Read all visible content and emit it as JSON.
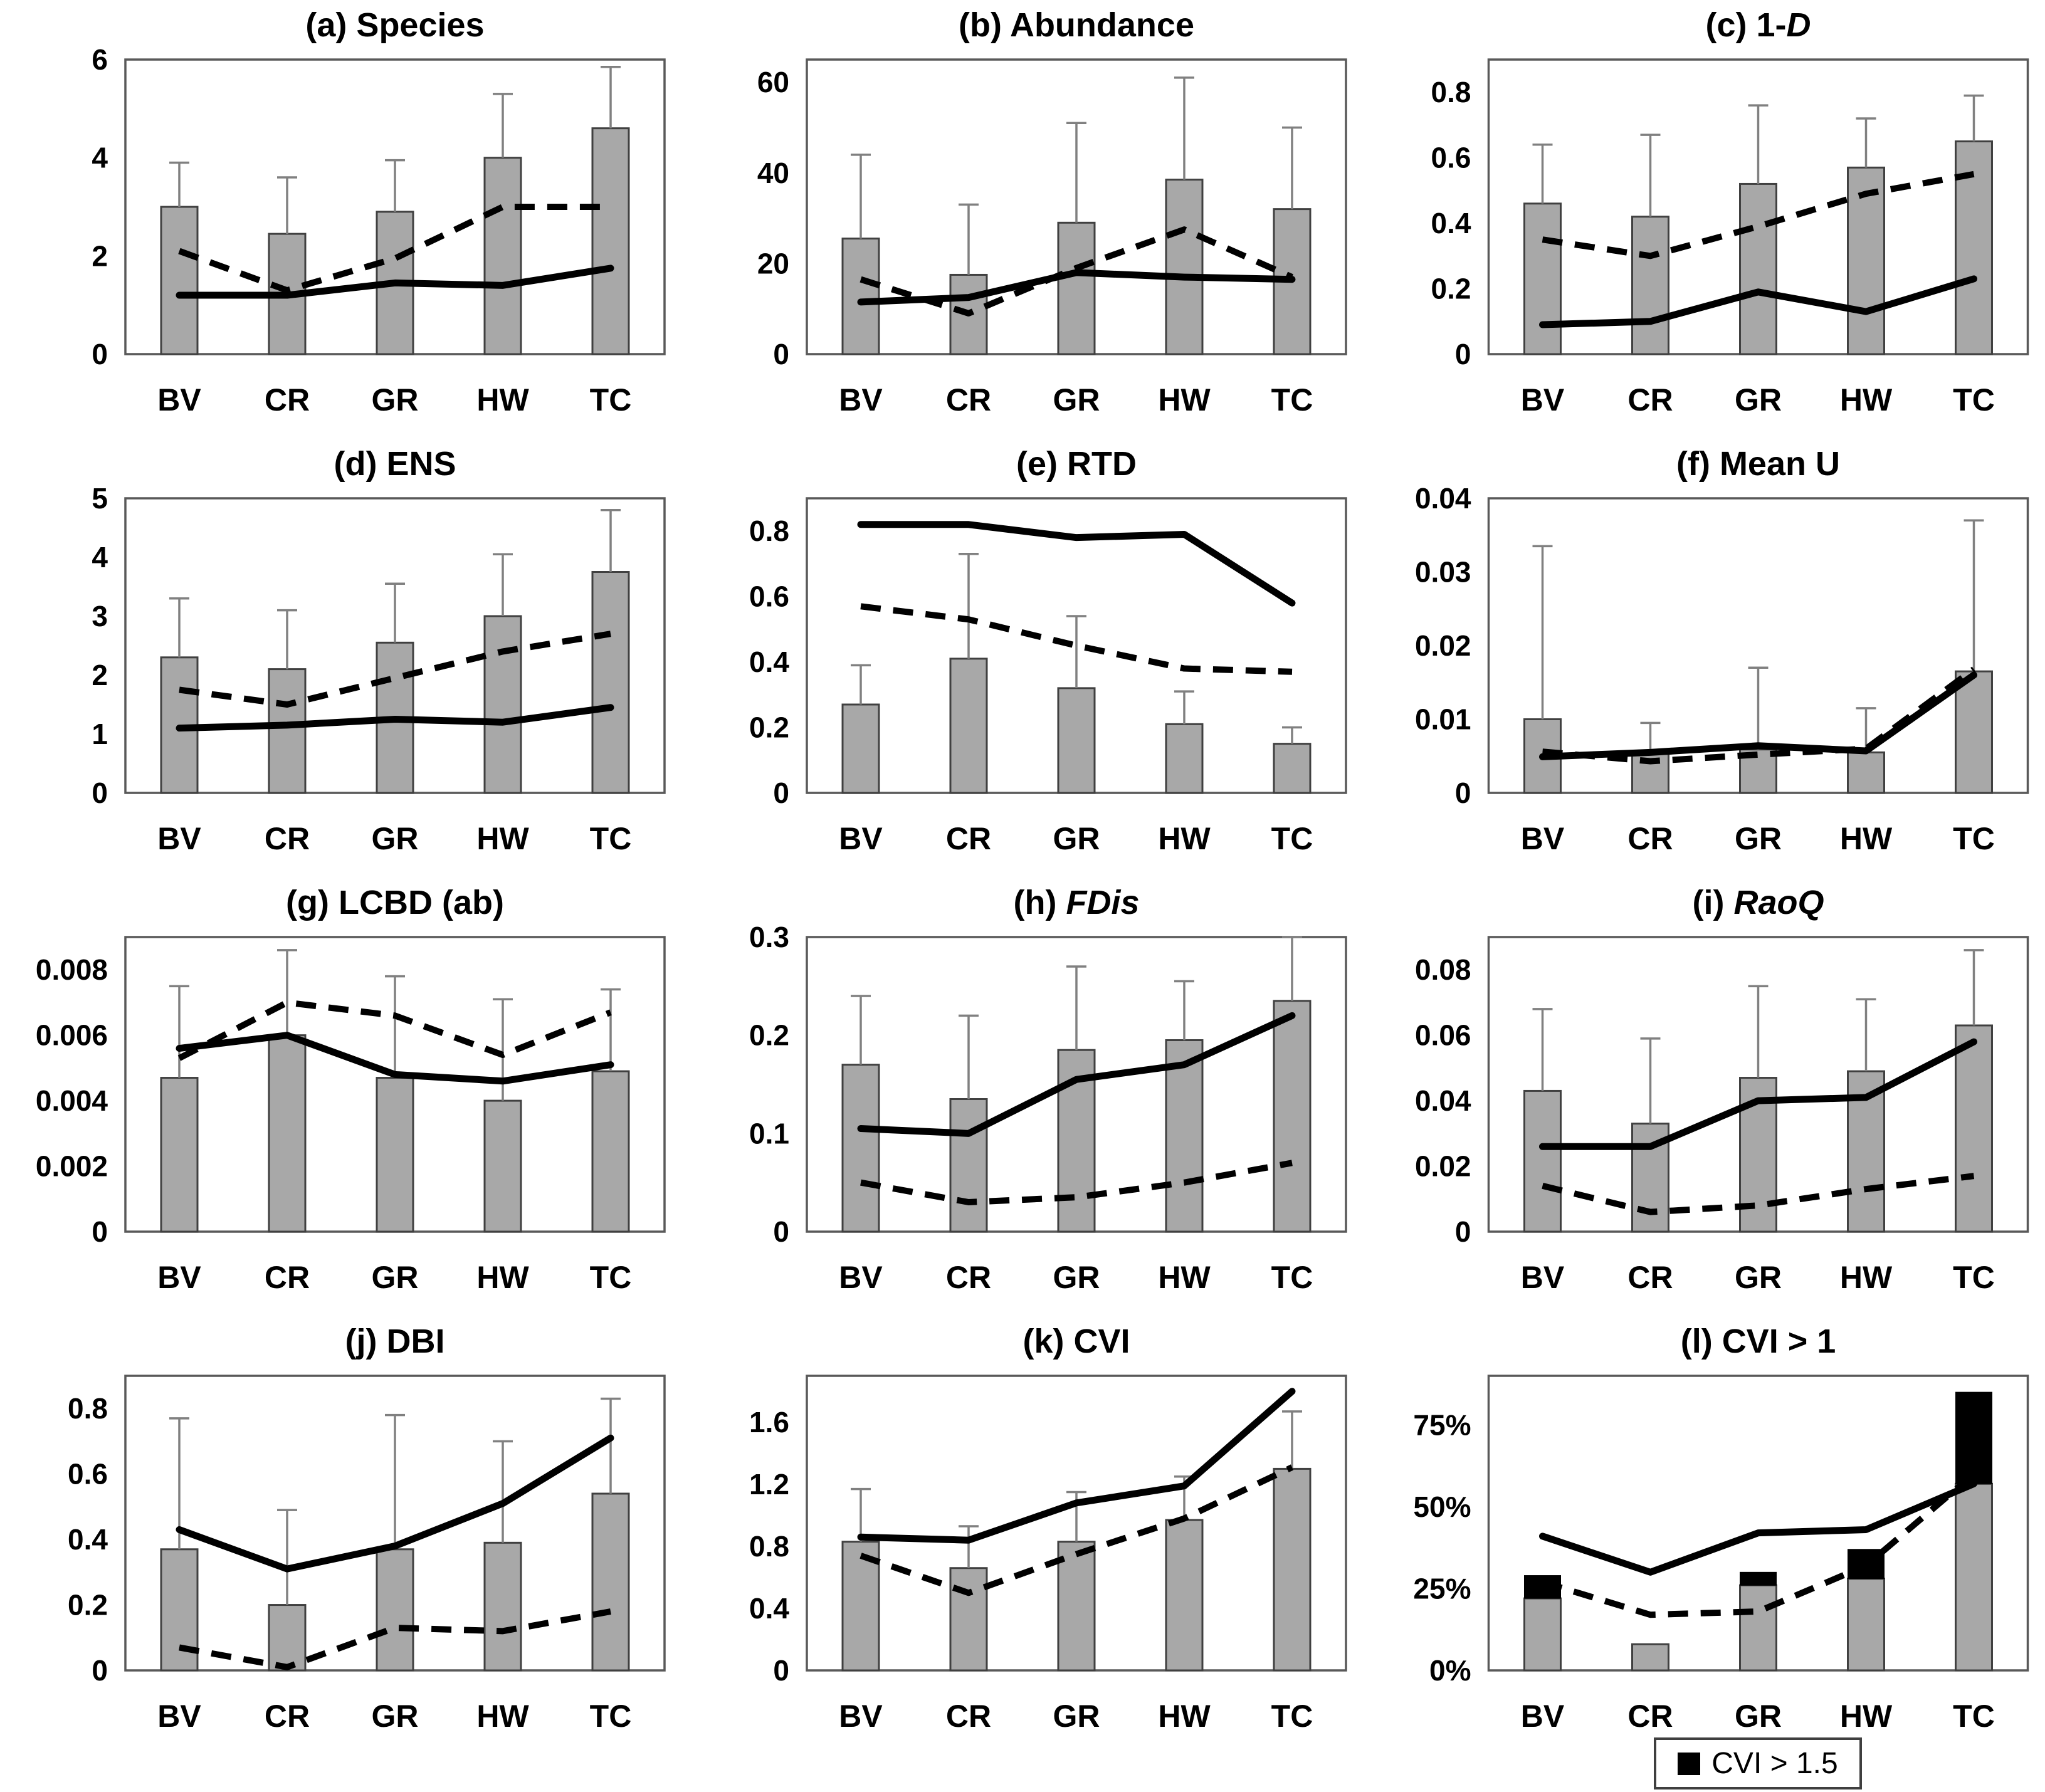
{
  "figure": {
    "background": "#ffffff",
    "categories": [
      "BV",
      "CR",
      "GR",
      "HW",
      "TC"
    ],
    "colors": {
      "bar_fill": "#a8a8a8",
      "bar_stroke": "#404040",
      "error_bar": "#808080",
      "line": "#000000",
      "plot_border": "#595959",
      "black_segment": "#000000"
    },
    "legend": {
      "label": "CVI > 1.5",
      "swatch": "black-square"
    }
  },
  "chart_data": [
    {
      "id": "a",
      "type": "bar-line",
      "title_prefix": "(a) Species",
      "title_italic": "",
      "categories": [
        "BV",
        "CR",
        "GR",
        "HW",
        "TC"
      ],
      "ylim": [
        0,
        6
      ],
      "grid": false,
      "legend_position": "none",
      "yticks": [
        {
          "v": 0,
          "t": "0"
        },
        {
          "v": 2,
          "t": "2"
        },
        {
          "v": 4,
          "t": "4"
        },
        {
          "v": 6,
          "t": "6"
        }
      ],
      "series": [
        {
          "name": "bars",
          "values": [
            3.0,
            2.45,
            2.9,
            4.0,
            4.6
          ]
        },
        {
          "name": "error_top",
          "values": [
            3.9,
            3.6,
            3.95,
            5.3,
            5.85
          ]
        },
        {
          "name": "solid_line",
          "values": [
            1.2,
            1.2,
            1.45,
            1.4,
            1.75
          ]
        },
        {
          "name": "dashed_line",
          "values": [
            2.1,
            1.3,
            1.95,
            3.0,
            3.0
          ]
        }
      ]
    },
    {
      "id": "b",
      "type": "bar-line",
      "title_prefix": "(b) Abundance",
      "title_italic": "",
      "categories": [
        "BV",
        "CR",
        "GR",
        "HW",
        "TC"
      ],
      "ylim": [
        0,
        65
      ],
      "grid": false,
      "legend_position": "none",
      "yticks": [
        {
          "v": 0,
          "t": "0"
        },
        {
          "v": 20,
          "t": "20"
        },
        {
          "v": 40,
          "t": "40"
        },
        {
          "v": 60,
          "t": "60"
        }
      ],
      "series": [
        {
          "name": "bars",
          "values": [
            25.5,
            17.5,
            29,
            38.5,
            32
          ]
        },
        {
          "name": "error_top",
          "values": [
            44,
            33,
            51,
            61,
            50
          ]
        },
        {
          "name": "solid_line",
          "values": [
            11.5,
            12.5,
            18,
            17,
            16.5
          ]
        },
        {
          "name": "dashed_line",
          "values": [
            16.5,
            9,
            19,
            27.5,
            17
          ]
        }
      ]
    },
    {
      "id": "c",
      "type": "bar-line",
      "title_prefix": "(c) 1-",
      "title_italic": "D",
      "categories": [
        "BV",
        "CR",
        "GR",
        "HW",
        "TC"
      ],
      "ylim": [
        0,
        0.9
      ],
      "grid": false,
      "legend_position": "none",
      "yticks": [
        {
          "v": 0,
          "t": "0"
        },
        {
          "v": 0.2,
          "t": "0.2"
        },
        {
          "v": 0.4,
          "t": "0.4"
        },
        {
          "v": 0.6,
          "t": "0.6"
        },
        {
          "v": 0.8,
          "t": "0.8"
        }
      ],
      "series": [
        {
          "name": "bars",
          "values": [
            0.46,
            0.42,
            0.52,
            0.57,
            0.65
          ]
        },
        {
          "name": "error_top",
          "values": [
            0.64,
            0.67,
            0.76,
            0.72,
            0.79
          ]
        },
        {
          "name": "solid_line",
          "values": [
            0.09,
            0.1,
            0.19,
            0.13,
            0.23
          ]
        },
        {
          "name": "dashed_line",
          "values": [
            0.35,
            0.3,
            0.39,
            0.49,
            0.55
          ]
        }
      ]
    },
    {
      "id": "d",
      "type": "bar-line",
      "title_prefix": "(d) ENS",
      "title_italic": "",
      "categories": [
        "BV",
        "CR",
        "GR",
        "HW",
        "TC"
      ],
      "ylim": [
        0,
        5
      ],
      "grid": false,
      "legend_position": "none",
      "yticks": [
        {
          "v": 0,
          "t": "0"
        },
        {
          "v": 1,
          "t": "1"
        },
        {
          "v": 2,
          "t": "2"
        },
        {
          "v": 3,
          "t": "3"
        },
        {
          "v": 4,
          "t": "4"
        },
        {
          "v": 5,
          "t": "5"
        }
      ],
      "series": [
        {
          "name": "bars",
          "values": [
            2.3,
            2.1,
            2.55,
            3.0,
            3.75
          ]
        },
        {
          "name": "error_top",
          "values": [
            3.3,
            3.1,
            3.55,
            4.05,
            4.8
          ]
        },
        {
          "name": "solid_line",
          "values": [
            1.1,
            1.15,
            1.25,
            1.2,
            1.45
          ]
        },
        {
          "name": "dashed_line",
          "values": [
            1.75,
            1.5,
            1.95,
            2.4,
            2.7
          ]
        }
      ]
    },
    {
      "id": "e",
      "type": "bar-line",
      "title_prefix": "(e) RTD",
      "title_italic": "",
      "categories": [
        "BV",
        "CR",
        "GR",
        "HW",
        "TC"
      ],
      "ylim": [
        0,
        0.9
      ],
      "grid": false,
      "legend_position": "none",
      "yticks": [
        {
          "v": 0,
          "t": "0"
        },
        {
          "v": 0.2,
          "t": "0.2"
        },
        {
          "v": 0.4,
          "t": "0.4"
        },
        {
          "v": 0.6,
          "t": "0.6"
        },
        {
          "v": 0.8,
          "t": "0.8"
        }
      ],
      "series": [
        {
          "name": "bars",
          "values": [
            0.27,
            0.41,
            0.32,
            0.21,
            0.15
          ]
        },
        {
          "name": "error_top",
          "values": [
            0.39,
            0.73,
            0.54,
            0.31,
            0.2
          ]
        },
        {
          "name": "solid_line",
          "values": [
            0.82,
            0.82,
            0.78,
            0.79,
            0.58
          ]
        },
        {
          "name": "dashed_line",
          "values": [
            0.57,
            0.53,
            0.45,
            0.38,
            0.37
          ]
        }
      ]
    },
    {
      "id": "f",
      "type": "bar-line",
      "title_prefix": "(f) Mean U",
      "title_italic": "",
      "categories": [
        "BV",
        "CR",
        "GR",
        "HW",
        "TC"
      ],
      "ylim": [
        0,
        0.04
      ],
      "grid": false,
      "legend_position": "none",
      "yticks": [
        {
          "v": 0,
          "t": "0"
        },
        {
          "v": 0.01,
          "t": "0.01"
        },
        {
          "v": 0.02,
          "t": "0.02"
        },
        {
          "v": 0.03,
          "t": "0.03"
        },
        {
          "v": 0.04,
          "t": "0.04"
        }
      ],
      "series": [
        {
          "name": "bars",
          "values": [
            0.01,
            0.0053,
            0.0059,
            0.0055,
            0.0165
          ]
        },
        {
          "name": "error_top",
          "values": [
            0.0335,
            0.0095,
            0.017,
            0.0115,
            0.037
          ]
        },
        {
          "name": "solid_line",
          "values": [
            0.0049,
            0.0055,
            0.0064,
            0.0057,
            0.016
          ]
        },
        {
          "name": "dashed_line",
          "values": [
            0.0056,
            0.0043,
            0.0052,
            0.006,
            0.0168
          ]
        }
      ]
    },
    {
      "id": "g",
      "type": "bar-line",
      "title_prefix": "(g) LCBD (ab)",
      "title_italic": "",
      "categories": [
        "BV",
        "CR",
        "GR",
        "HW",
        "TC"
      ],
      "ylim": [
        0,
        0.009
      ],
      "grid": false,
      "legend_position": "none",
      "yticks": [
        {
          "v": 0,
          "t": "0"
        },
        {
          "v": 0.002,
          "t": "0.002"
        },
        {
          "v": 0.004,
          "t": "0.004"
        },
        {
          "v": 0.006,
          "t": "0.006"
        },
        {
          "v": 0.008,
          "t": "0.008"
        }
      ],
      "series": [
        {
          "name": "bars",
          "values": [
            0.0047,
            0.006,
            0.0047,
            0.004,
            0.0049
          ]
        },
        {
          "name": "error_top",
          "values": [
            0.0075,
            0.0086,
            0.0078,
            0.0071,
            0.0074
          ]
        },
        {
          "name": "solid_line",
          "values": [
            0.0056,
            0.006,
            0.0048,
            0.0046,
            0.0051
          ]
        },
        {
          "name": "dashed_line",
          "values": [
            0.0053,
            0.007,
            0.0066,
            0.0054,
            0.0067
          ]
        }
      ]
    },
    {
      "id": "h",
      "type": "bar-line",
      "title_prefix": "(h) ",
      "title_italic": "FDis",
      "categories": [
        "BV",
        "CR",
        "GR",
        "HW",
        "TC"
      ],
      "ylim": [
        0,
        0.3
      ],
      "grid": false,
      "legend_position": "none",
      "yticks": [
        {
          "v": 0,
          "t": "0"
        },
        {
          "v": 0.1,
          "t": "0.1"
        },
        {
          "v": 0.2,
          "t": "0.2"
        },
        {
          "v": 0.3,
          "t": "0.3"
        }
      ],
      "series": [
        {
          "name": "bars",
          "values": [
            0.17,
            0.135,
            0.185,
            0.195,
            0.235
          ]
        },
        {
          "name": "error_top",
          "values": [
            0.24,
            0.22,
            0.27,
            0.255,
            0.3
          ]
        },
        {
          "name": "solid_line",
          "values": [
            0.105,
            0.1,
            0.155,
            0.17,
            0.22
          ]
        },
        {
          "name": "dashed_line",
          "values": [
            0.05,
            0.03,
            0.035,
            0.05,
            0.07
          ]
        }
      ]
    },
    {
      "id": "i",
      "type": "bar-line",
      "title_prefix": "(i) ",
      "title_italic": "RaoQ",
      "categories": [
        "BV",
        "CR",
        "GR",
        "HW",
        "TC"
      ],
      "ylim": [
        0,
        0.09
      ],
      "grid": false,
      "legend_position": "none",
      "yticks": [
        {
          "v": 0,
          "t": "0"
        },
        {
          "v": 0.02,
          "t": "0.02"
        },
        {
          "v": 0.04,
          "t": "0.04"
        },
        {
          "v": 0.06,
          "t": "0.06"
        },
        {
          "v": 0.08,
          "t": "0.08"
        }
      ],
      "series": [
        {
          "name": "bars",
          "values": [
            0.043,
            0.033,
            0.047,
            0.049,
            0.063
          ]
        },
        {
          "name": "error_top",
          "values": [
            0.068,
            0.059,
            0.075,
            0.071,
            0.086
          ]
        },
        {
          "name": "solid_line",
          "values": [
            0.026,
            0.026,
            0.04,
            0.041,
            0.058
          ]
        },
        {
          "name": "dashed_line",
          "values": [
            0.014,
            0.006,
            0.008,
            0.013,
            0.017
          ]
        }
      ]
    },
    {
      "id": "j",
      "type": "bar-line",
      "title_prefix": "(j) DBI",
      "title_italic": "",
      "categories": [
        "BV",
        "CR",
        "GR",
        "HW",
        "TC"
      ],
      "ylim": [
        0,
        0.9
      ],
      "grid": false,
      "legend_position": "none",
      "yticks": [
        {
          "v": 0,
          "t": "0"
        },
        {
          "v": 0.2,
          "t": "0.2"
        },
        {
          "v": 0.4,
          "t": "0.4"
        },
        {
          "v": 0.6,
          "t": "0.6"
        },
        {
          "v": 0.8,
          "t": "0.8"
        }
      ],
      "series": [
        {
          "name": "bars",
          "values": [
            0.37,
            0.2,
            0.37,
            0.39,
            0.54
          ]
        },
        {
          "name": "error_top",
          "values": [
            0.77,
            0.49,
            0.78,
            0.7,
            0.83
          ]
        },
        {
          "name": "solid_line",
          "values": [
            0.43,
            0.31,
            0.38,
            0.51,
            0.71
          ]
        },
        {
          "name": "dashed_line",
          "values": [
            0.07,
            0.01,
            0.13,
            0.12,
            0.18
          ]
        }
      ]
    },
    {
      "id": "k",
      "type": "bar-line",
      "title_prefix": "(k) CVI",
      "title_italic": "",
      "categories": [
        "BV",
        "CR",
        "GR",
        "HW",
        "TC"
      ],
      "ylim": [
        0,
        1.9
      ],
      "grid": false,
      "legend_position": "none",
      "yticks": [
        {
          "v": 0,
          "t": "0"
        },
        {
          "v": 0.4,
          "t": "0.4"
        },
        {
          "v": 0.8,
          "t": "0.8"
        },
        {
          "v": 1.2,
          "t": "1.2"
        },
        {
          "v": 1.6,
          "t": "1.6"
        }
      ],
      "series": [
        {
          "name": "bars",
          "values": [
            0.83,
            0.66,
            0.83,
            0.97,
            1.3
          ]
        },
        {
          "name": "error_top",
          "values": [
            1.17,
            0.93,
            1.15,
            1.25,
            1.67
          ]
        },
        {
          "name": "solid_line",
          "values": [
            0.86,
            0.84,
            1.08,
            1.19,
            1.8
          ]
        },
        {
          "name": "dashed_line",
          "values": [
            0.74,
            0.5,
            0.75,
            0.98,
            1.31
          ]
        }
      ]
    },
    {
      "id": "l",
      "type": "stacked-bar-line",
      "title_prefix": "(l) CVI > 1",
      "title_italic": "",
      "categories": [
        "BV",
        "CR",
        "GR",
        "HW",
        "TC"
      ],
      "ylim": [
        0,
        90
      ],
      "unit": "%",
      "grid": false,
      "legend_position": "below",
      "yticks": [
        {
          "v": 0,
          "t": "0%"
        },
        {
          "v": 25,
          "t": "25%"
        },
        {
          "v": 50,
          "t": "50%"
        },
        {
          "v": 75,
          "t": "75%"
        }
      ],
      "series": [
        {
          "name": "bars_gray_cvi_gt_1",
          "values": [
            22,
            8,
            26,
            28,
            57
          ]
        },
        {
          "name": "bars_total_top_black_cvi_gt_1_5",
          "values": [
            29,
            8,
            30,
            37,
            85
          ]
        },
        {
          "name": "solid_line",
          "values": [
            41,
            30,
            42,
            43,
            57
          ]
        },
        {
          "name": "dashed_line",
          "values": [
            27,
            17,
            18,
            32,
            60
          ]
        }
      ]
    }
  ]
}
